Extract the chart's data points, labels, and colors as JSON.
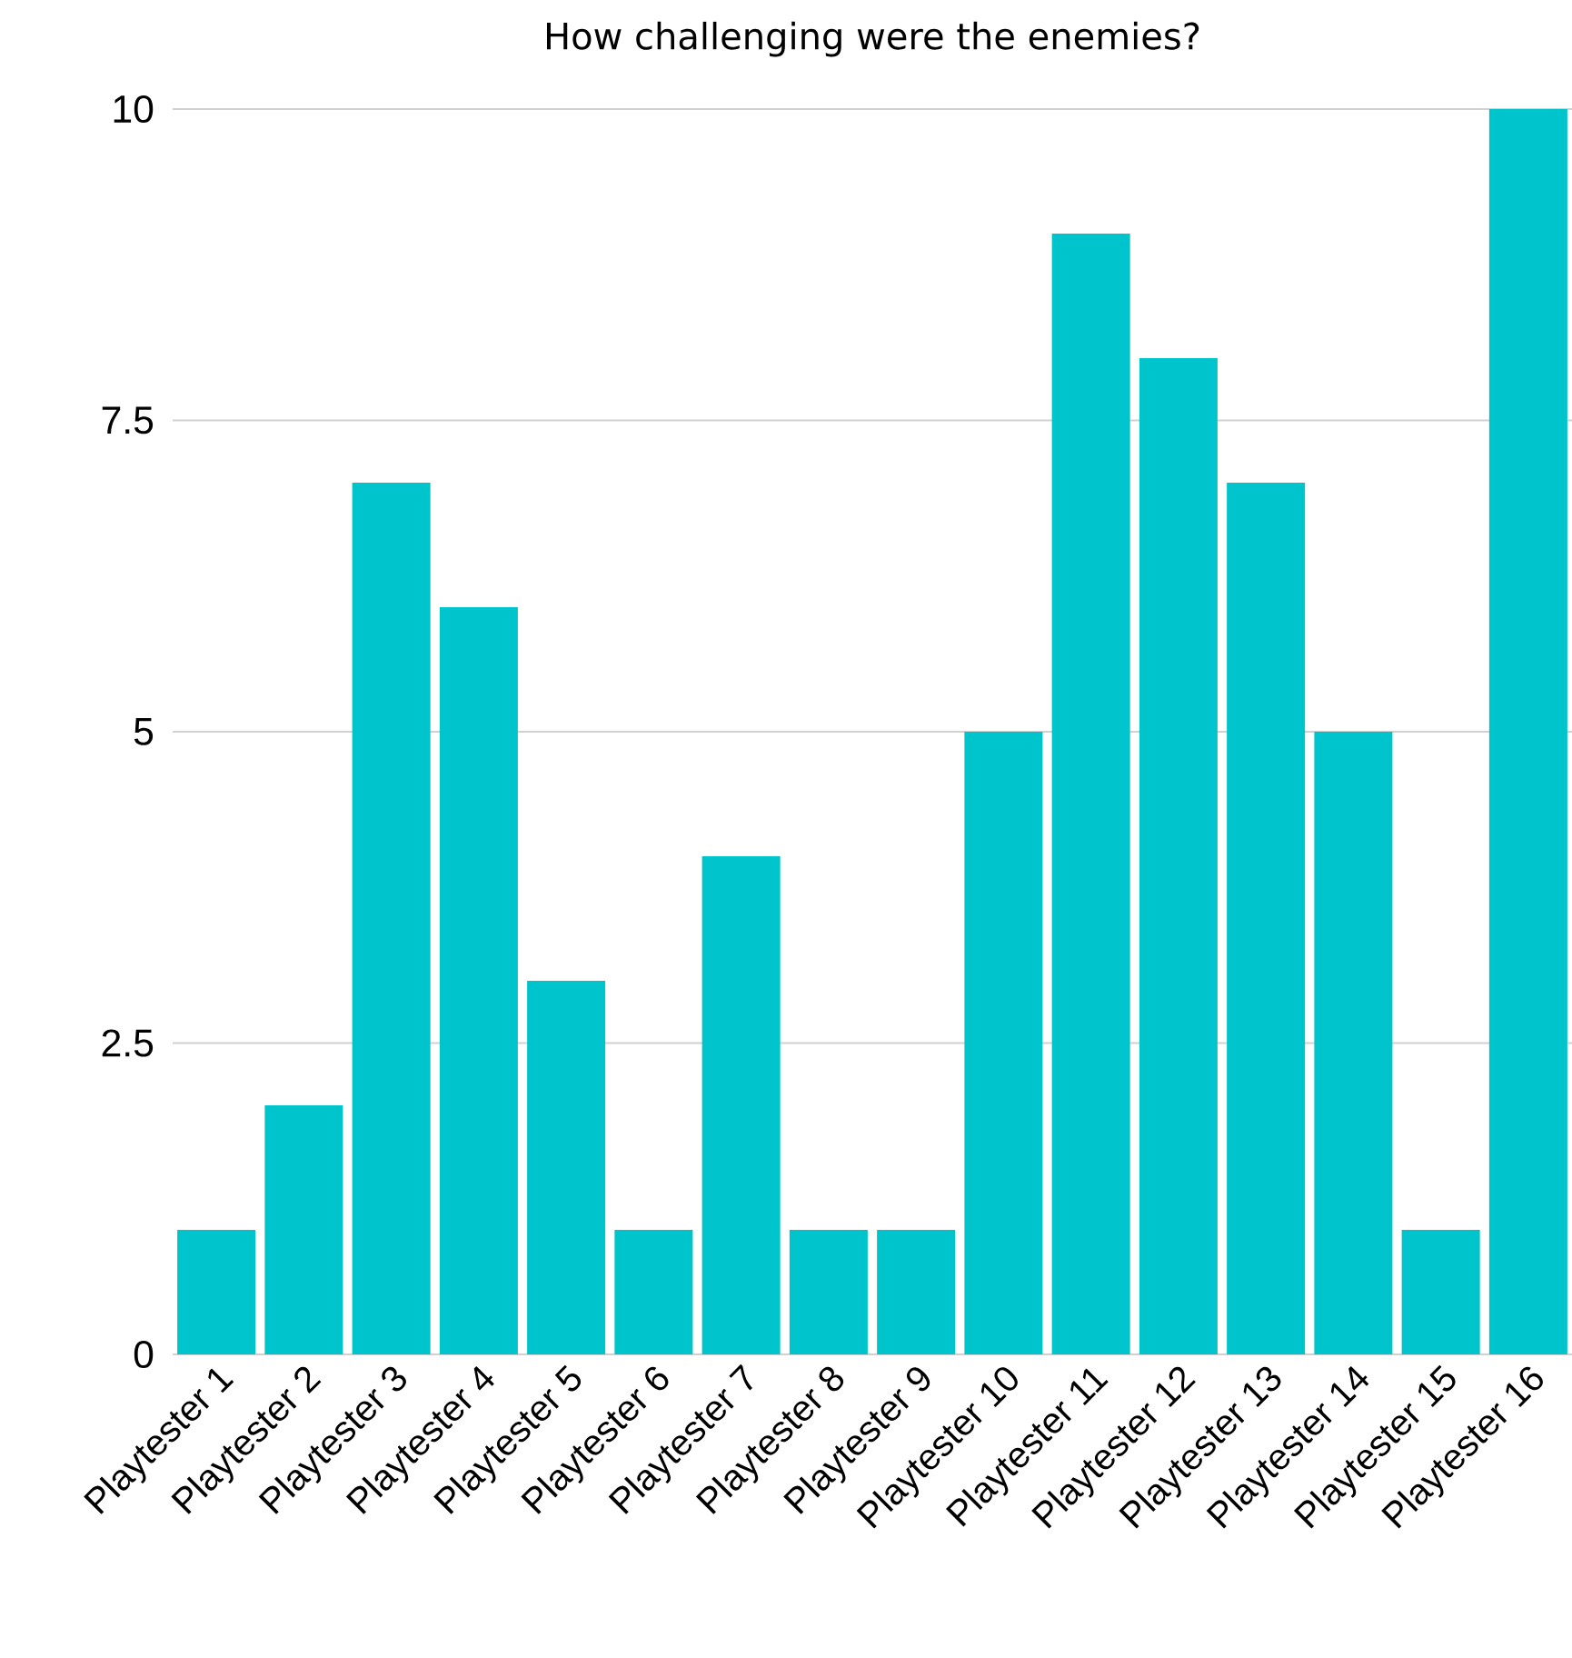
{
  "chart_data": {
    "type": "bar",
    "title": "How challenging were the enemies?",
    "categories": [
      "Playtester 1",
      "Playtester 2",
      "Playtester 3",
      "Playtester 4",
      "Playtester 5",
      "Playtester 6",
      "Playtester 7",
      "Playtester 8",
      "Playtester 9",
      "Playtester 10",
      "Playtester 11",
      "Playtester 12",
      "Playtester 13",
      "Playtester 14",
      "Playtester 15",
      "Playtester 16"
    ],
    "values": [
      1,
      2,
      7,
      6,
      3,
      1,
      4,
      1,
      1,
      5,
      9,
      8,
      7,
      5,
      1,
      10
    ],
    "color": "#00c4cc",
    "ylim": [
      0,
      10
    ],
    "yticks": [
      0,
      2.5,
      5,
      7.5,
      10
    ],
    "grid": "y"
  }
}
